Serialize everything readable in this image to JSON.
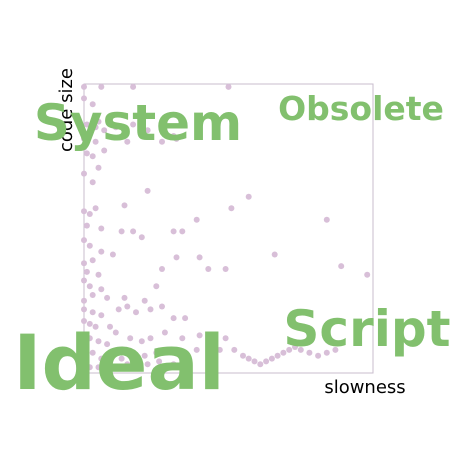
{
  "chart_data": {
    "type": "scatter",
    "title": "",
    "xlabel": "slowness",
    "ylabel": "code size",
    "xlim": [
      0,
      1
    ],
    "ylim": [
      0,
      1
    ],
    "grid": false,
    "colors": {
      "points": "#d8bfd8",
      "labels": "#82c06e",
      "frame": "#c8bccd"
    },
    "annotations": [
      "System",
      "Obsolete",
      "Ideal",
      "Script"
    ],
    "points": [
      [
        0.0,
        0.99
      ],
      [
        0.06,
        0.99
      ],
      [
        0.17,
        0.99
      ],
      [
        0.5,
        0.99
      ],
      [
        0.0,
        0.95
      ],
      [
        0.03,
        0.93
      ],
      [
        0.05,
        0.87
      ],
      [
        0.01,
        0.86
      ],
      [
        0.04,
        0.85
      ],
      [
        0.07,
        0.84
      ],
      [
        0.11,
        0.85
      ],
      [
        0.17,
        0.86
      ],
      [
        0.22,
        0.84
      ],
      [
        0.31,
        0.82
      ],
      [
        0.0,
        0.81
      ],
      [
        0.04,
        0.8
      ],
      [
        0.0,
        0.78
      ],
      [
        0.01,
        0.76
      ],
      [
        0.03,
        0.75
      ],
      [
        0.07,
        0.77
      ],
      [
        0.15,
        0.8
      ],
      [
        0.27,
        0.8
      ],
      [
        0.32,
        0.81
      ],
      [
        0.05,
        0.71
      ],
      [
        0.0,
        0.69
      ],
      [
        0.03,
        0.66
      ],
      [
        0.22,
        0.63
      ],
      [
        0.14,
        0.58
      ],
      [
        0.04,
        0.57
      ],
      [
        0.0,
        0.56
      ],
      [
        0.02,
        0.55
      ],
      [
        0.01,
        0.51
      ],
      [
        0.06,
        0.5
      ],
      [
        0.13,
        0.49
      ],
      [
        0.17,
        0.49
      ],
      [
        0.2,
        0.47
      ],
      [
        0.31,
        0.49
      ],
      [
        0.34,
        0.49
      ],
      [
        0.39,
        0.53
      ],
      [
        0.51,
        0.57
      ],
      [
        0.57,
        0.61
      ],
      [
        0.84,
        0.53
      ],
      [
        0.0,
        0.46
      ],
      [
        0.02,
        0.44
      ],
      [
        0.06,
        0.42
      ],
      [
        0.1,
        0.41
      ],
      [
        0.03,
        0.39
      ],
      [
        0.0,
        0.38
      ],
      [
        0.01,
        0.35
      ],
      [
        0.05,
        0.34
      ],
      [
        0.0,
        0.32
      ],
      [
        0.02,
        0.3
      ],
      [
        0.06,
        0.29
      ],
      [
        0.03,
        0.27
      ],
      [
        0.0,
        0.25
      ],
      [
        0.08,
        0.26
      ],
      [
        0.14,
        0.26
      ],
      [
        0.21,
        0.25
      ],
      [
        0.25,
        0.3
      ],
      [
        0.27,
        0.36
      ],
      [
        0.32,
        0.4
      ],
      [
        0.4,
        0.4
      ],
      [
        0.43,
        0.36
      ],
      [
        0.49,
        0.36
      ],
      [
        0.66,
        0.41
      ],
      [
        0.89,
        0.37
      ],
      [
        0.98,
        0.34
      ],
      [
        0.0,
        0.22
      ],
      [
        0.03,
        0.21
      ],
      [
        0.06,
        0.2
      ],
      [
        0.0,
        0.18
      ],
      [
        0.02,
        0.17
      ],
      [
        0.04,
        0.16
      ],
      [
        0.09,
        0.16
      ],
      [
        0.12,
        0.22
      ],
      [
        0.15,
        0.23
      ],
      [
        0.18,
        0.21
      ],
      [
        0.23,
        0.22
      ],
      [
        0.27,
        0.23
      ],
      [
        0.31,
        0.19
      ],
      [
        0.35,
        0.19
      ],
      [
        0.0,
        0.13
      ],
      [
        0.02,
        0.12
      ],
      [
        0.05,
        0.11
      ],
      [
        0.08,
        0.1
      ],
      [
        0.11,
        0.14
      ],
      [
        0.16,
        0.12
      ],
      [
        0.2,
        0.11
      ],
      [
        0.23,
        0.12
      ],
      [
        0.28,
        0.14
      ],
      [
        0.34,
        0.12
      ],
      [
        0.4,
        0.13
      ],
      [
        0.45,
        0.11
      ],
      [
        0.49,
        0.12
      ],
      [
        0.0,
        0.08
      ],
      [
        0.03,
        0.07
      ],
      [
        0.06,
        0.05
      ],
      [
        0.1,
        0.06
      ],
      [
        0.13,
        0.05
      ],
      [
        0.17,
        0.07
      ],
      [
        0.21,
        0.06
      ],
      [
        0.25,
        0.07
      ],
      [
        0.3,
        0.08
      ],
      [
        0.34,
        0.06
      ],
      [
        0.39,
        0.08
      ],
      [
        0.44,
        0.06
      ],
      [
        0.47,
        0.08
      ],
      [
        0.52,
        0.08
      ],
      [
        0.55,
        0.06
      ],
      [
        0.57,
        0.05
      ],
      [
        0.59,
        0.04
      ],
      [
        0.61,
        0.03
      ],
      [
        0.63,
        0.04
      ],
      [
        0.65,
        0.05
      ],
      [
        0.67,
        0.06
      ],
      [
        0.69,
        0.07
      ],
      [
        0.71,
        0.08
      ],
      [
        0.73,
        0.09
      ],
      [
        0.75,
        0.08
      ],
      [
        0.78,
        0.07
      ],
      [
        0.81,
        0.06
      ],
      [
        0.84,
        0.07
      ],
      [
        0.87,
        0.08
      ],
      [
        0.0,
        0.03
      ],
      [
        0.02,
        0.02
      ],
      [
        0.05,
        0.02
      ],
      [
        0.08,
        0.01
      ],
      [
        0.12,
        0.02
      ],
      [
        0.15,
        0.03
      ],
      [
        0.18,
        0.02
      ],
      [
        0.22,
        0.03
      ],
      [
        0.26,
        0.04
      ],
      [
        0.31,
        0.03
      ],
      [
        0.36,
        0.04
      ]
    ]
  }
}
